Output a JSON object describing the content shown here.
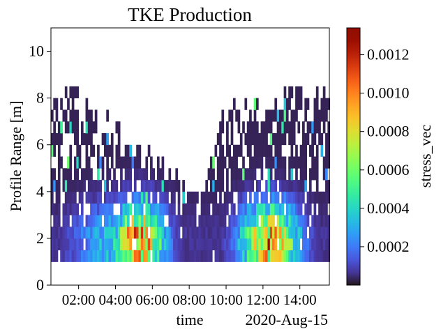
{
  "chart_data": {
    "type": "heatmap",
    "title": "TKE Production",
    "xlabel": "time",
    "ylabel": "Profile Range [m]",
    "x_offset_label": "2020-Aug-15",
    "x_range_hours": [
      0.5,
      15.6
    ],
    "x_ticks": [
      "02:00",
      "04:00",
      "06:00",
      "08:00",
      "10:00",
      "12:00",
      "14:00"
    ],
    "x_tick_hours": [
      2,
      4,
      6,
      8,
      10,
      12,
      14
    ],
    "y_range": [
      0,
      11
    ],
    "y_ticks": [
      "0",
      "2",
      "4",
      "6",
      "8",
      "10"
    ],
    "y_tick_values": [
      0,
      2,
      4,
      6,
      8,
      10
    ],
    "bin_first_m": 1.0,
    "bin_size_m": 0.5,
    "n_bins": 15,
    "time_step_hours": 0.125,
    "colorbar": {
      "label": "stress_vec",
      "colormap": "turbo",
      "range": [
        0.0,
        0.00134
      ],
      "ticks": [
        "0.0002",
        "0.0004",
        "0.0006",
        "0.0008",
        "0.0010",
        "0.0012"
      ],
      "tick_values": [
        0.0002,
        0.0004,
        0.0006,
        0.0008,
        0.001,
        0.0012
      ]
    },
    "structure": "TKE production high near bed (1-3 m); two active periods ~02:00-07:00 and ~09:30-15:30; data gaps higher in profile during 06:00-09:00"
  }
}
